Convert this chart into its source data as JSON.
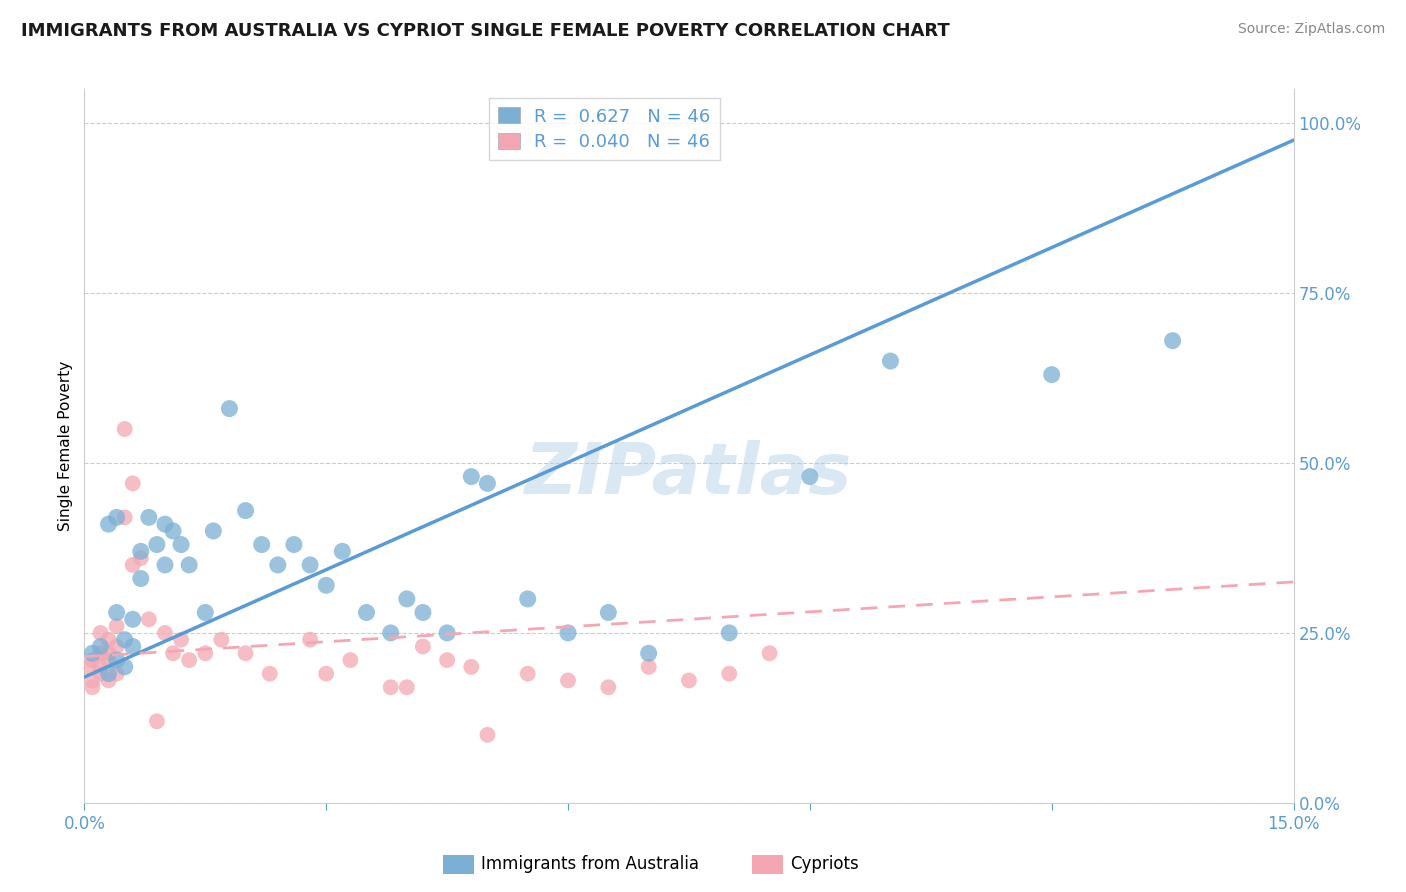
{
  "title": "IMMIGRANTS FROM AUSTRALIA VS CYPRIOT SINGLE FEMALE POVERTY CORRELATION CHART",
  "source": "Source: ZipAtlas.com",
  "ylabel": "Single Female Poverty",
  "xlim": [
    0.0,
    0.15
  ],
  "ylim": [
    0.0,
    1.05
  ],
  "ytick_labels_right": [
    "0.0%",
    "25.0%",
    "50.0%",
    "75.0%",
    "100.0%"
  ],
  "ytick_values_right": [
    0.0,
    0.25,
    0.5,
    0.75,
    1.0
  ],
  "legend_label1": "Immigrants from Australia",
  "legend_label2": "Cypriots",
  "blue_color": "#7BAFD4",
  "pink_color": "#F4A7B2",
  "blue_line_color": "#5B9BD5",
  "pink_line_color": "#F4A7B2",
  "watermark": "ZIPatlas",
  "blue_line_x": [
    0.0,
    0.15
  ],
  "blue_line_y": [
    0.185,
    0.975
  ],
  "pink_line_x": [
    0.0,
    0.15
  ],
  "pink_line_y": [
    0.215,
    0.325
  ],
  "blue_x": [
    0.001,
    0.002,
    0.003,
    0.004,
    0.005,
    0.005,
    0.006,
    0.006,
    0.007,
    0.007,
    0.008,
    0.009,
    0.01,
    0.011,
    0.012,
    0.013,
    0.015,
    0.016,
    0.018,
    0.02,
    0.022,
    0.024,
    0.026,
    0.028,
    0.03,
    0.032,
    0.035,
    0.038,
    0.04,
    0.042,
    0.045,
    0.048,
    0.05,
    0.055,
    0.06,
    0.065,
    0.07,
    0.08,
    0.09,
    0.1,
    0.12,
    0.135,
    0.003,
    0.004,
    0.004,
    0.01
  ],
  "blue_y": [
    0.22,
    0.23,
    0.19,
    0.21,
    0.2,
    0.24,
    0.23,
    0.27,
    0.37,
    0.33,
    0.42,
    0.38,
    0.35,
    0.4,
    0.38,
    0.35,
    0.28,
    0.4,
    0.58,
    0.43,
    0.38,
    0.35,
    0.38,
    0.35,
    0.32,
    0.37,
    0.28,
    0.25,
    0.3,
    0.28,
    0.25,
    0.48,
    0.47,
    0.3,
    0.25,
    0.28,
    0.22,
    0.25,
    0.48,
    0.65,
    0.63,
    0.68,
    0.41,
    0.42,
    0.28,
    0.41
  ],
  "pink_x": [
    0.0005,
    0.001,
    0.001,
    0.001,
    0.002,
    0.002,
    0.002,
    0.002,
    0.003,
    0.003,
    0.003,
    0.003,
    0.004,
    0.004,
    0.004,
    0.005,
    0.005,
    0.006,
    0.006,
    0.007,
    0.008,
    0.009,
    0.01,
    0.011,
    0.012,
    0.013,
    0.015,
    0.017,
    0.02,
    0.023,
    0.028,
    0.03,
    0.033,
    0.038,
    0.04,
    0.042,
    0.045,
    0.048,
    0.05,
    0.055,
    0.06,
    0.065,
    0.07,
    0.075,
    0.08,
    0.085
  ],
  "pink_y": [
    0.2,
    0.17,
    0.21,
    0.18,
    0.22,
    0.19,
    0.2,
    0.25,
    0.18,
    0.22,
    0.21,
    0.24,
    0.19,
    0.23,
    0.26,
    0.42,
    0.55,
    0.35,
    0.47,
    0.36,
    0.27,
    0.12,
    0.25,
    0.22,
    0.24,
    0.21,
    0.22,
    0.24,
    0.22,
    0.19,
    0.24,
    0.19,
    0.21,
    0.17,
    0.17,
    0.23,
    0.21,
    0.2,
    0.1,
    0.19,
    0.18,
    0.17,
    0.2,
    0.18,
    0.19,
    0.22
  ]
}
